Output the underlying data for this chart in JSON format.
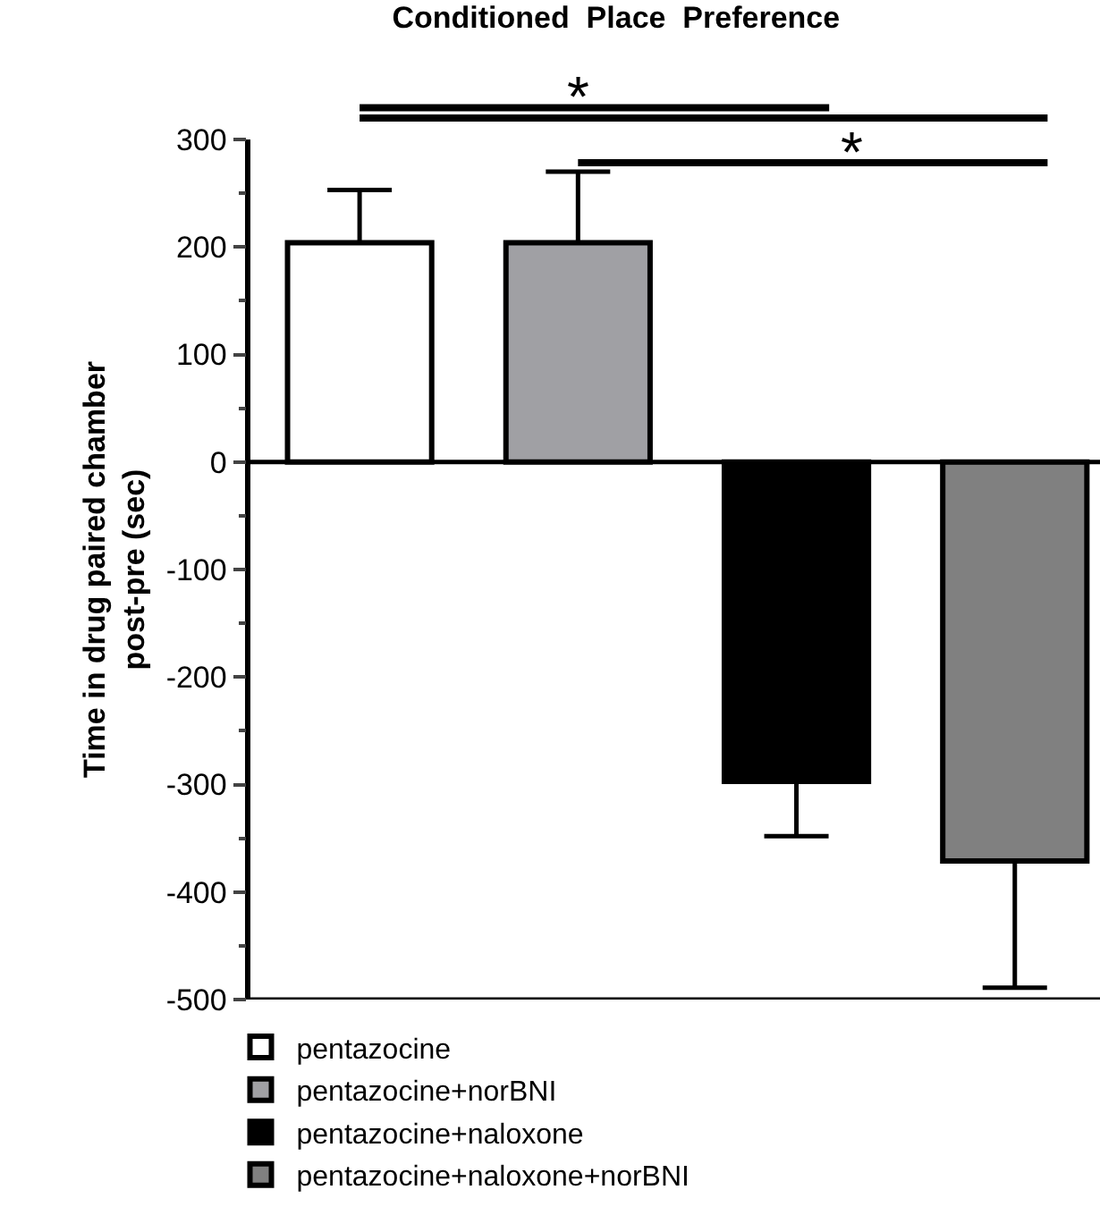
{
  "chart_data": {
    "type": "bar",
    "title": "Conditioned  Place  Preference",
    "ylabel": "Time in drug paired chamber\npost-pre (sec)",
    "categories": [
      null,
      null,
      null,
      null
    ],
    "series": [
      {
        "name": "pentazocine",
        "color": "#ffffff",
        "values": [
          204,
          null,
          null,
          null
        ],
        "errors": [
          [
            204,
            253
          ],
          null,
          null,
          null
        ]
      },
      {
        "name": "pentazocine+norBNI",
        "color": "#a0a0a4",
        "values": [
          null,
          204,
          null,
          null
        ],
        "errors": [
          null,
          [
            204,
            270
          ],
          null,
          null
        ]
      },
      {
        "name": "pentazocine+naloxone",
        "color": "#000000",
        "values": [
          null,
          null,
          -297,
          null
        ],
        "errors": [
          null,
          null,
          [
            -348,
            -297
          ],
          null
        ]
      },
      {
        "name": "pentazocine+naloxone+norBNI",
        "color": "#808080",
        "values": [
          null,
          null,
          null,
          -371
        ],
        "errors": [
          null,
          null,
          null,
          [
            -489,
            -371
          ]
        ]
      }
    ],
    "ylim": [
      -500,
      300
    ],
    "yticks": [
      -500,
      -400,
      -300,
      -200,
      -100,
      0,
      100,
      200,
      300
    ],
    "annotations": [
      "*",
      "*"
    ],
    "ref_lines": [
      {
        "axis": "y",
        "value": 0,
        "color": "#000000"
      }
    ],
    "legend": "bottom left"
  }
}
